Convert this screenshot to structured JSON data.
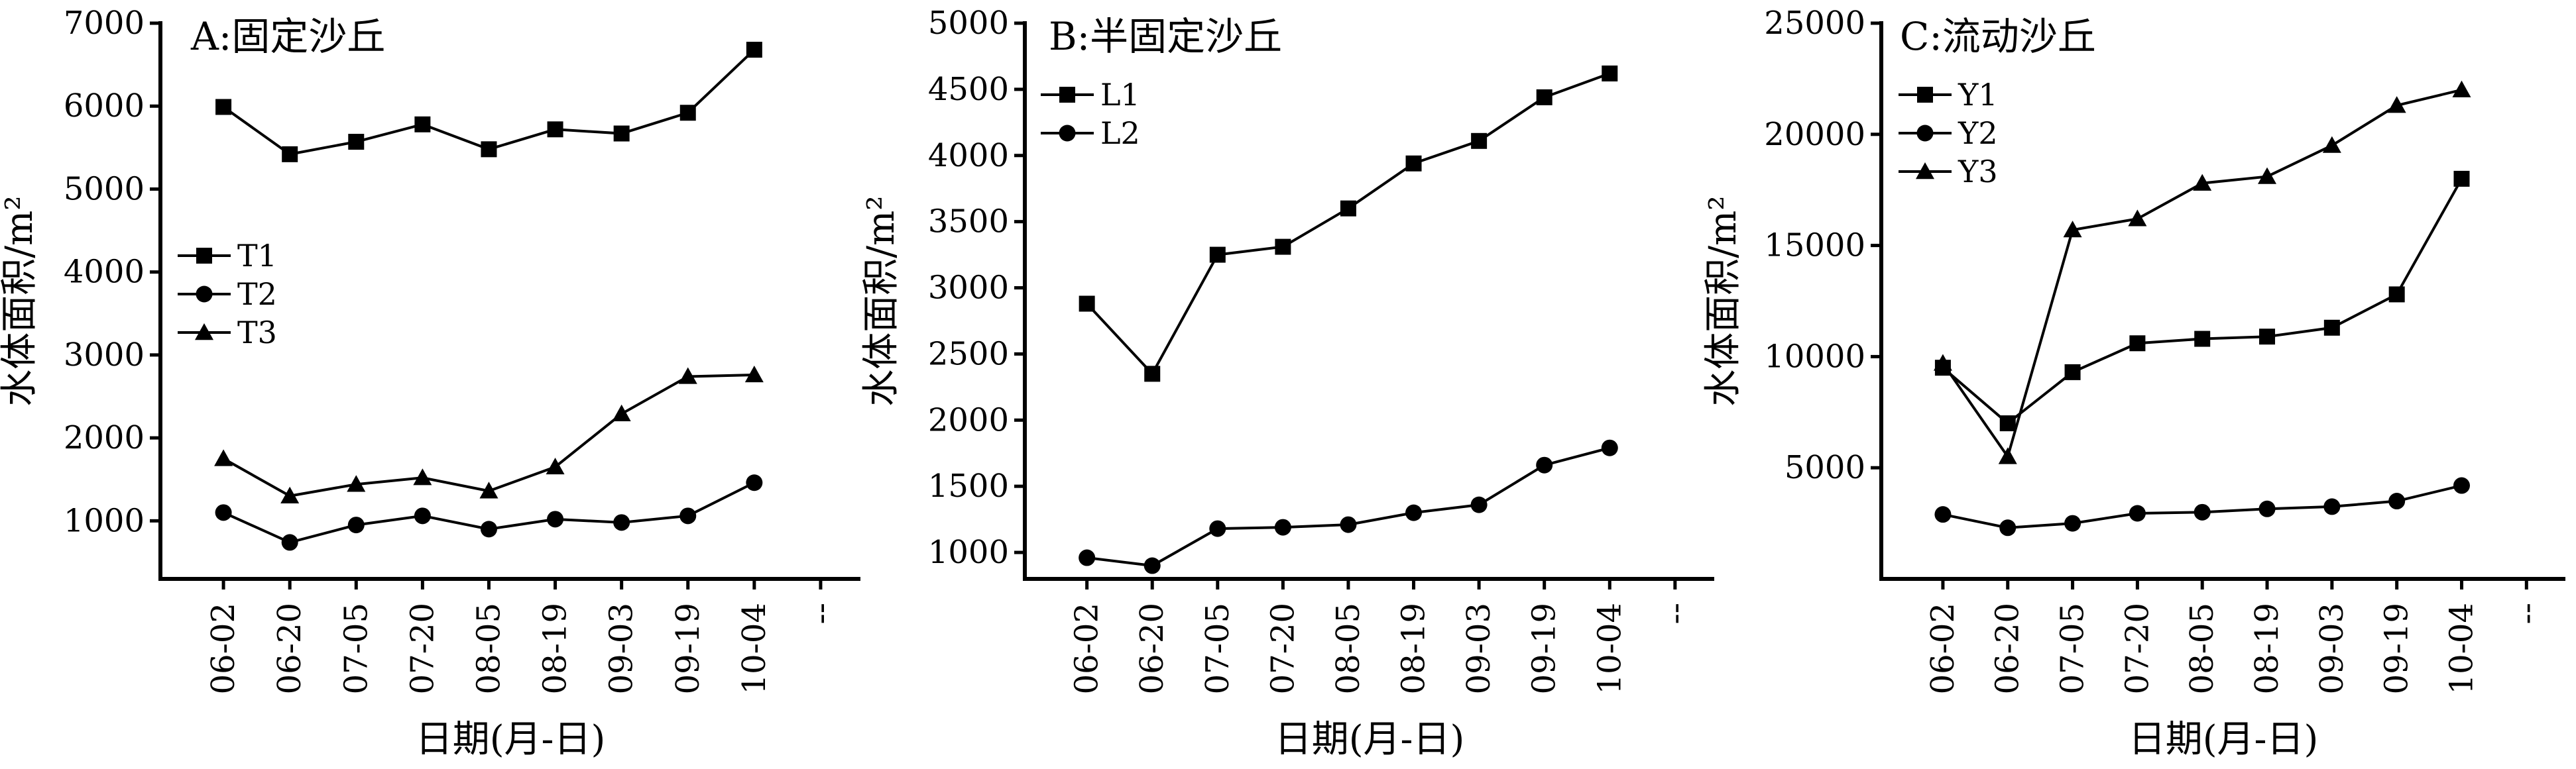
{
  "chart_data": [
    {
      "type": "line",
      "title": "A:固定沙丘",
      "xlabel": "日期(月-日)",
      "ylabel": "水体面积/m²",
      "categories": [
        "06-02",
        "06-20",
        "07-05",
        "07-20",
        "08-05",
        "08-19",
        "09-03",
        "09-19",
        "10-04"
      ],
      "extra_tick_label": "--",
      "ylim": [
        300,
        7000
      ],
      "yticks": [
        1000,
        2000,
        3000,
        4000,
        5000,
        6000,
        7000
      ],
      "legend_position": "middle-left",
      "series": [
        {
          "name": "T1",
          "marker": "square",
          "values": [
            5990,
            5420,
            5570,
            5780,
            5480,
            5720,
            5670,
            5920,
            6680
          ]
        },
        {
          "name": "T2",
          "marker": "circle",
          "values": [
            1100,
            740,
            950,
            1060,
            900,
            1020,
            980,
            1060,
            1460
          ]
        },
        {
          "name": "T3",
          "marker": "triangle",
          "values": [
            1750,
            1300,
            1440,
            1520,
            1360,
            1650,
            2290,
            2740,
            2760
          ]
        }
      ]
    },
    {
      "type": "line",
      "title": "B:半固定沙丘",
      "xlabel": "日期(月-日)",
      "ylabel": "水体面积/m²",
      "categories": [
        "06-02",
        "06-20",
        "07-05",
        "07-20",
        "08-05",
        "08-19",
        "09-03",
        "09-19",
        "10-04"
      ],
      "extra_tick_label": "--",
      "ylim": [
        800,
        5000
      ],
      "yticks": [
        1000,
        1500,
        2000,
        2500,
        3000,
        3500,
        4000,
        4500,
        5000
      ],
      "legend_position": "top-left",
      "series": [
        {
          "name": "L1",
          "marker": "square",
          "values": [
            2880,
            2350,
            3250,
            3310,
            3600,
            3940,
            4110,
            4440,
            4620
          ]
        },
        {
          "name": "L2",
          "marker": "circle",
          "values": [
            960,
            900,
            1180,
            1190,
            1210,
            1300,
            1360,
            1660,
            1790
          ]
        }
      ]
    },
    {
      "type": "line",
      "title": "C:流动沙丘",
      "xlabel": "日期(月-日)",
      "ylabel": "水体面积/m²",
      "categories": [
        "06-02",
        "06-20",
        "07-05",
        "07-20",
        "08-05",
        "08-19",
        "09-03",
        "09-19",
        "10-04"
      ],
      "extra_tick_label": "--",
      "ylim": [
        0,
        25000
      ],
      "yticks": [
        5000,
        10000,
        15000,
        20000,
        25000
      ],
      "legend_position": "top-left",
      "series": [
        {
          "name": "Y1",
          "marker": "square",
          "values": [
            9500,
            7000,
            9300,
            10600,
            10800,
            10900,
            11300,
            12800,
            18000
          ]
        },
        {
          "name": "Y2",
          "marker": "circle",
          "values": [
            2900,
            2300,
            2500,
            2950,
            3000,
            3150,
            3250,
            3500,
            4200
          ]
        },
        {
          "name": "Y3",
          "marker": "triangle",
          "values": [
            9700,
            5500,
            15700,
            16200,
            17800,
            18100,
            19500,
            21300,
            22000
          ]
        }
      ]
    }
  ]
}
